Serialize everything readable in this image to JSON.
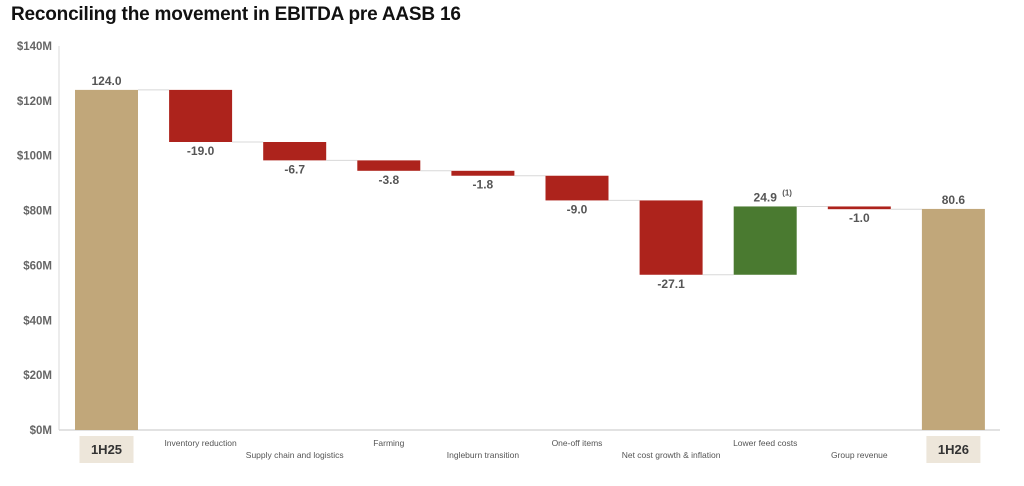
{
  "chart_data": {
    "type": "bar",
    "subtype": "waterfall",
    "title": "Reconciling the movement in EBITDA pre AASB 16",
    "xlabel": "",
    "ylabel": "",
    "ylim": [
      0,
      140
    ],
    "yticks": [
      0,
      20,
      40,
      60,
      80,
      100,
      120,
      140
    ],
    "ytick_labels": [
      "$0M",
      "$20M",
      "$40M",
      "$60M",
      "$80M",
      "$100M",
      "$120M",
      "$140M"
    ],
    "grid": false,
    "categories": [
      "1H25",
      "Inventory reduction",
      "Supply chain and logistics",
      "Farming",
      "Ingleburn transition",
      "One-off items",
      "Net cost growth & inflation",
      "Lower feed costs",
      "Group revenue",
      "1H26"
    ],
    "values": [
      124.0,
      -19.0,
      -6.7,
      -3.8,
      -1.8,
      -9.0,
      -27.1,
      24.9,
      -1.0,
      80.6
    ],
    "kinds": [
      "total",
      "delta",
      "delta",
      "delta",
      "delta",
      "delta",
      "delta",
      "delta",
      "delta",
      "total"
    ],
    "data_labels": [
      "124.0",
      "-19.0",
      "-6.7",
      "-3.8",
      "-1.8",
      "-9.0",
      "-27.1",
      "24.9",
      "-1.0",
      "80.6"
    ],
    "annotations": [
      {
        "category": "Lower feed costs",
        "text": "(1)"
      }
    ],
    "colors": {
      "total": "#c1a77a",
      "decrease": "#ad231c",
      "increase": "#4a7a30",
      "end_label_bg": "#ede6da",
      "connector": "#d8d8d8",
      "axis": "#d9d9d9"
    }
  }
}
